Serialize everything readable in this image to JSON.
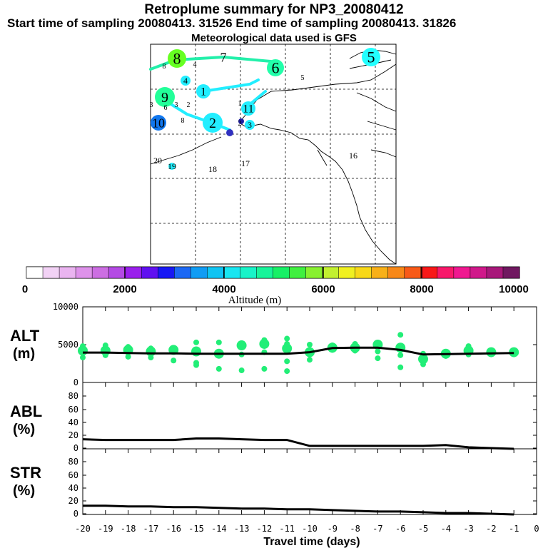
{
  "header": {
    "title": "Retroplume summary for NP3_20080412",
    "sampling": "Start time of sampling 20080413. 31526     End time of sampling 20080413. 31826",
    "met": "Meteorological data used is GFS"
  },
  "colorbar": {
    "label": "Altitude (m)",
    "ticks": [
      "0",
      "2000",
      "4000",
      "6000",
      "8000",
      "10000"
    ],
    "colors": [
      "#ffffff",
      "#f2d2f5",
      "#eab4f0",
      "#de92ea",
      "#cc6ee2",
      "#b44ae4",
      "#9a20ec",
      "#6010f0",
      "#1818f4",
      "#1c68f4",
      "#109cf4",
      "#10c4f2",
      "#18e6f0",
      "#18f4c8",
      "#18f49a",
      "#18f066",
      "#40f040",
      "#88f030",
      "#c2f030",
      "#f0f020",
      "#f8d818",
      "#f8b018",
      "#f88818",
      "#f85a18",
      "#f81818",
      "#f8186a",
      "#f01890",
      "#d0188a",
      "#a8187a",
      "#701860"
    ]
  },
  "map": {
    "labels": [
      {
        "t": "8",
        "c": "#66ff22"
      },
      {
        "t": "7",
        "c": "#22ff99"
      },
      {
        "t": "6",
        "c": "#22ffaa"
      },
      {
        "t": "5",
        "c": "#22ffff"
      },
      {
        "t": "4",
        "c": "#22eeff"
      },
      {
        "t": "1",
        "c": "#22eeff"
      },
      {
        "t": "9",
        "c": "#22ff99"
      },
      {
        "t": "2",
        "c": "#22eeff"
      },
      {
        "t": "10",
        "c": "#1177ee"
      },
      {
        "t": "11",
        "c": "#22eeff"
      },
      {
        "t": "3",
        "c": "#22eeff"
      },
      {
        "t": "16",
        "c": "#22ff99"
      },
      {
        "t": "17",
        "c": "#22eeff"
      },
      {
        "t": "18",
        "c": "#22eeff"
      },
      {
        "t": "19",
        "c": "#22eeff"
      },
      {
        "t": "20",
        "c": "#22eeff"
      }
    ]
  },
  "chart_data": [
    {
      "type": "line",
      "panel": "ALT",
      "ylabel": "ALT (m)",
      "ylim": [
        0,
        10000
      ],
      "yticks": [
        "10000",
        "5000",
        "0"
      ],
      "x": [
        -20,
        -19,
        -18,
        -17,
        -16,
        -15,
        -14,
        -13,
        -12,
        -11,
        -10,
        -9,
        -8,
        -7,
        -6,
        -5,
        -4,
        -3,
        -2,
        -1
      ],
      "values": [
        3950,
        3950,
        3900,
        3850,
        3850,
        3800,
        3800,
        3800,
        3800,
        3800,
        4000,
        4550,
        4600,
        4600,
        4300,
        3700,
        3750,
        3800,
        3850,
        3900
      ],
      "spread": [
        [
          3300,
          4200,
          4800
        ],
        [
          3600,
          4200,
          4900
        ],
        [
          3400,
          4300,
          4700
        ],
        [
          3300,
          4100,
          4500
        ],
        [
          2900,
          4300,
          4500
        ],
        [
          2300,
          2600,
          4100,
          5300
        ],
        [
          1800,
          3800,
          5300
        ],
        [
          1600,
          3700,
          4900,
          5200
        ],
        [
          1800,
          4000,
          5100,
          5600
        ],
        [
          1500,
          2800,
          4500,
          5100,
          5800
        ],
        [
          3000,
          4000,
          5000
        ],
        [
          4300,
          4600,
          4900
        ],
        [
          4200,
          4600,
          5100
        ],
        [
          3200,
          4100,
          5000,
          5200
        ],
        [
          2000,
          3600,
          4600,
          6300
        ],
        [
          2400,
          3100,
          3800
        ],
        [
          3500,
          3800
        ],
        [
          3700,
          4200,
          4800
        ],
        [
          3800,
          4000,
          4200
        ],
        [
          3900,
          4000
        ]
      ]
    },
    {
      "type": "line",
      "panel": "ABL",
      "ylabel": "ABL (%)",
      "ylim": [
        0,
        90
      ],
      "yticks": [
        "80",
        "60",
        "40",
        "20",
        "0"
      ],
      "x": [
        -20,
        -19,
        -18,
        -17,
        -16,
        -15,
        -14,
        -13,
        -12,
        -11,
        -10,
        -9,
        -8,
        -7,
        -6,
        -5,
        -4,
        -3,
        -2,
        -1
      ],
      "values": [
        13,
        12,
        12,
        12,
        12,
        14,
        14,
        13,
        12,
        12,
        4,
        4,
        4,
        4,
        4,
        4,
        5,
        2,
        1,
        0
      ]
    },
    {
      "type": "line",
      "panel": "STR",
      "ylabel": "STR (%)",
      "ylim": [
        0,
        90
      ],
      "yticks": [
        "80",
        "60",
        "40",
        "20",
        "0"
      ],
      "x": [
        -20,
        -19,
        -18,
        -17,
        -16,
        -15,
        -14,
        -13,
        -12,
        -11,
        -10,
        -9,
        -8,
        -7,
        -6,
        -5,
        -4,
        -3,
        -2,
        -1
      ],
      "values": [
        12,
        12,
        11,
        11,
        10,
        10,
        9,
        8,
        8,
        7,
        7,
        6,
        5,
        4,
        4,
        3,
        2,
        2,
        1,
        0
      ]
    }
  ],
  "xaxis": {
    "label": "Travel time (days)",
    "ticks": [
      "-20",
      "-19",
      "-18",
      "-17",
      "-16",
      "-15",
      "-14",
      "-13",
      "-12",
      "-11",
      "-10",
      "-9",
      "-8",
      "-7",
      "-6",
      "-5",
      "-4",
      "-3",
      "-2",
      "-1",
      "0"
    ]
  },
  "panels": {
    "alt_label1": "ALT",
    "alt_label2": "(m)",
    "abl_label1": "ABL",
    "abl_label2": "(%)",
    "str_label1": "STR",
    "str_label2": "(%)"
  }
}
